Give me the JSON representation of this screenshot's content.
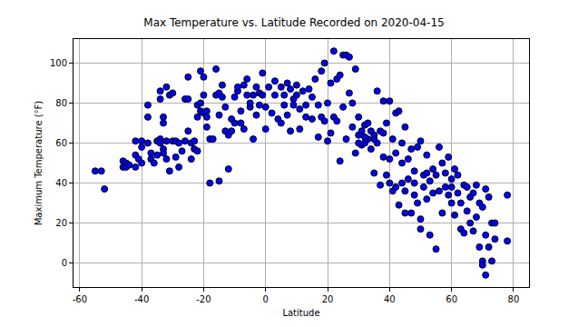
{
  "chart_data": {
    "type": "scatter",
    "title": "Max Temperature vs. Latitude Recorded on 2020-04-15",
    "x_label": "Latitude",
    "y_label": "Maximum Temperature (°F)",
    "color": "blue",
    "marker": "circle",
    "grid": true,
    "xlim": [
      -62,
      85
    ],
    "ylim": [
      -12,
      112
    ],
    "xticks": [
      -60,
      -40,
      -20,
      0,
      20,
      40,
      60,
      80
    ],
    "yticks": [
      0,
      20,
      40,
      60,
      80,
      100
    ],
    "x": [
      -55,
      -53,
      -52,
      -46,
      -46,
      -45,
      -45,
      -44,
      -42,
      -42,
      -42,
      -41,
      -40,
      -40,
      -40,
      -38,
      -38,
      -38,
      -37,
      -37,
      -36,
      -35,
      -35,
      -34,
      -34,
      -34,
      -34,
      -33,
      -33,
      -33,
      -33,
      -32,
      -32,
      -32,
      -31,
      -31,
      -30,
      -30,
      -29,
      -29,
      -28,
      -28,
      -27,
      -26,
      -26,
      -25,
      -25,
      -25,
      -24,
      -24,
      -23,
      -23,
      -22,
      -22,
      -22,
      -21,
      -21,
      -21,
      -20,
      -20,
      -20,
      -19,
      -19,
      -19,
      -18,
      -18,
      -17,
      -16,
      -16,
      -15,
      -15,
      -15,
      -14,
      -14,
      -13,
      -13,
      -12,
      -12,
      -11,
      -11,
      -10,
      -10,
      -9,
      -9,
      -8,
      -8,
      -7,
      -7,
      -6,
      -6,
      -5,
      -5,
      -4,
      -4,
      -3,
      -3,
      -2,
      -2,
      -1,
      -1,
      0,
      0,
      1,
      2,
      3,
      3,
      4,
      5,
      5,
      6,
      6,
      7,
      7,
      8,
      8,
      9,
      9,
      10,
      10,
      11,
      11,
      12,
      13,
      13,
      14,
      15,
      15,
      16,
      17,
      17,
      18,
      18,
      19,
      19,
      20,
      20,
      21,
      21,
      22,
      22,
      23,
      23,
      24,
      24,
      25,
      25,
      26,
      26,
      27,
      27,
      28,
      28,
      29,
      29,
      30,
      30,
      31,
      31,
      32,
      32,
      33,
      33,
      34,
      34,
      35,
      35,
      36,
      36,
      37,
      37,
      38,
      38,
      39,
      39,
      40,
      40,
      41,
      41,
      42,
      42,
      42,
      43,
      43,
      44,
      44,
      45,
      45,
      45,
      46,
      46,
      47,
      47,
      48,
      48,
      49,
      49,
      50,
      50,
      50,
      51,
      51,
      52,
      52,
      53,
      53,
      54,
      54,
      55,
      55,
      56,
      56,
      57,
      57,
      58,
      58,
      59,
      59,
      60,
      60,
      61,
      61,
      62,
      62,
      63,
      63,
      64,
      64,
      65,
      65,
      66,
      66,
      67,
      67,
      68,
      68,
      69,
      69,
      70,
      70,
      71,
      71,
      71,
      72,
      72,
      73,
      73,
      74,
      74,
      78,
      78,
      70,
      30,
      32,
      35,
      38,
      40,
      44,
      48,
      52,
      60
    ],
    "values": [
      46,
      46,
      37,
      48,
      51,
      50,
      48,
      49,
      61,
      54,
      48,
      52,
      61,
      58,
      50,
      73,
      79,
      60,
      52,
      55,
      50,
      54,
      61,
      62,
      86,
      82,
      60,
      73,
      70,
      57,
      55,
      61,
      88,
      52,
      84,
      46,
      85,
      61,
      53,
      61,
      60,
      48,
      56,
      82,
      61,
      93,
      82,
      66,
      60,
      52,
      61,
      57,
      73,
      79,
      56,
      76,
      80,
      96,
      93,
      75,
      84,
      73,
      76,
      68,
      40,
      62,
      62,
      84,
      97,
      41,
      74,
      85,
      83,
      89,
      66,
      78,
      47,
      64,
      72,
      66,
      70,
      83,
      86,
      88,
      70,
      76,
      89,
      67,
      84,
      92,
      78,
      80,
      84,
      62,
      88,
      74,
      85,
      79,
      95,
      84,
      78,
      67,
      88,
      75,
      91,
      84,
      72,
      88,
      70,
      79,
      84,
      90,
      74,
      87,
      66,
      82,
      79,
      89,
      84,
      77,
      67,
      86,
      79,
      73,
      87,
      72,
      83,
      92,
      79,
      63,
      96,
      73,
      71,
      100,
      80,
      61,
      90,
      65,
      106,
      73,
      92,
      71,
      51,
      94,
      104,
      78,
      104,
      62,
      103,
      85,
      80,
      68,
      97,
      55,
      73,
      64,
      59,
      66,
      69,
      60,
      62,
      70,
      57,
      66,
      45,
      64,
      86,
      60,
      39,
      66,
      53,
      81,
      44,
      70,
      81,
      52,
      36,
      62,
      38,
      75,
      55,
      76,
      29,
      40,
      60,
      25,
      36,
      68,
      52,
      42,
      25,
      57,
      46,
      34,
      58,
      30,
      61,
      17,
      22,
      44,
      38,
      54,
      32,
      41,
      14,
      47,
      35,
      7,
      44,
      58,
      36,
      50,
      25,
      38,
      45,
      34,
      53,
      42,
      30,
      24,
      47,
      44,
      35,
      17,
      30,
      15,
      39,
      26,
      38,
      20,
      33,
      35,
      16,
      39,
      23,
      8,
      30,
      1,
      28,
      -6,
      37,
      14,
      8,
      33,
      1,
      20,
      12,
      20,
      34,
      11,
      -1,
      60,
      63,
      62,
      65,
      40,
      50,
      40,
      45,
      38
    ]
  }
}
